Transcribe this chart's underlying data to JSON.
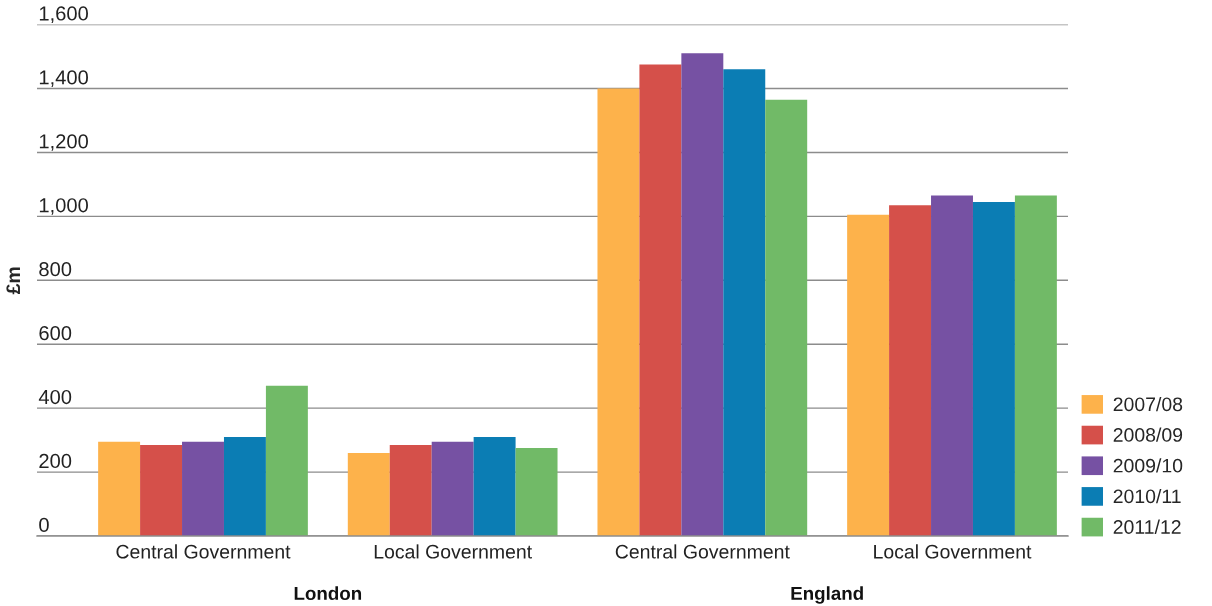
{
  "chart_data": {
    "type": "bar",
    "categories": [
      "Central Government",
      "Local Government",
      "Central Government",
      "Local Government"
    ],
    "ylabel": "£m",
    "annotations": [
      "London",
      "England"
    ],
    "ylim": [
      0,
      1600
    ],
    "yticks": [
      0,
      200,
      400,
      600,
      800,
      {
        "value": 1000,
        "label": "1,000"
      },
      {
        "value": 1200,
        "label": "1,200"
      },
      {
        "value": 1400,
        "label": "1,400"
      },
      {
        "value": 1600,
        "label": "1,600"
      }
    ],
    "grid": "y",
    "legend": "bottom right",
    "series": [
      {
        "name": "2007/08",
        "color": "#fdb24b",
        "values": [
          295,
          260,
          1400,
          1005
        ]
      },
      {
        "name": "2008/09",
        "color": "#d5504a",
        "values": [
          285,
          285,
          1475,
          1035
        ]
      },
      {
        "name": "2009/10",
        "color": "#7651a3",
        "values": [
          295,
          295,
          1510,
          1065
        ]
      },
      {
        "name": "2010/11",
        "color": "#0b7db4",
        "values": [
          310,
          310,
          1460,
          1045
        ]
      },
      {
        "name": "2011/12",
        "color": "#71ba67",
        "values": [
          470,
          275,
          1365,
          1065
        ]
      }
    ]
  }
}
